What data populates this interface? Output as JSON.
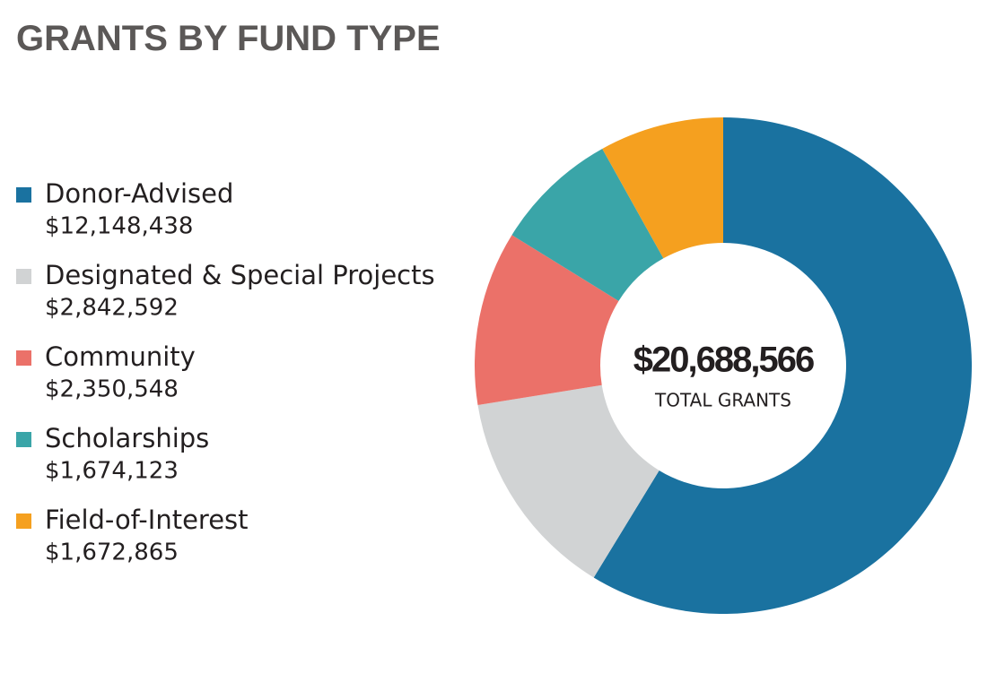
{
  "chart_data": {
    "type": "pie",
    "title": "GRANTS BY FUND TYPE",
    "categories": [
      "Donor-Advised",
      "Designated & Special Projects",
      "Community",
      "Scholarships",
      "Field-of-Interest"
    ],
    "values": [
      12148438,
      2842592,
      2350548,
      1674123,
      1672865
    ],
    "value_labels": [
      "$12,148,438",
      "$2,842,592",
      "$2,350,548",
      "$1,674,123",
      "$1,672,865"
    ],
    "colors": [
      "#1a72a0",
      "#d1d3d4",
      "#eb7169",
      "#3aa5a8",
      "#f5a01f"
    ],
    "center_label": "$20,688,566",
    "center_sublabel": "TOTAL GRANTS",
    "donut": true,
    "legend": "left"
  }
}
